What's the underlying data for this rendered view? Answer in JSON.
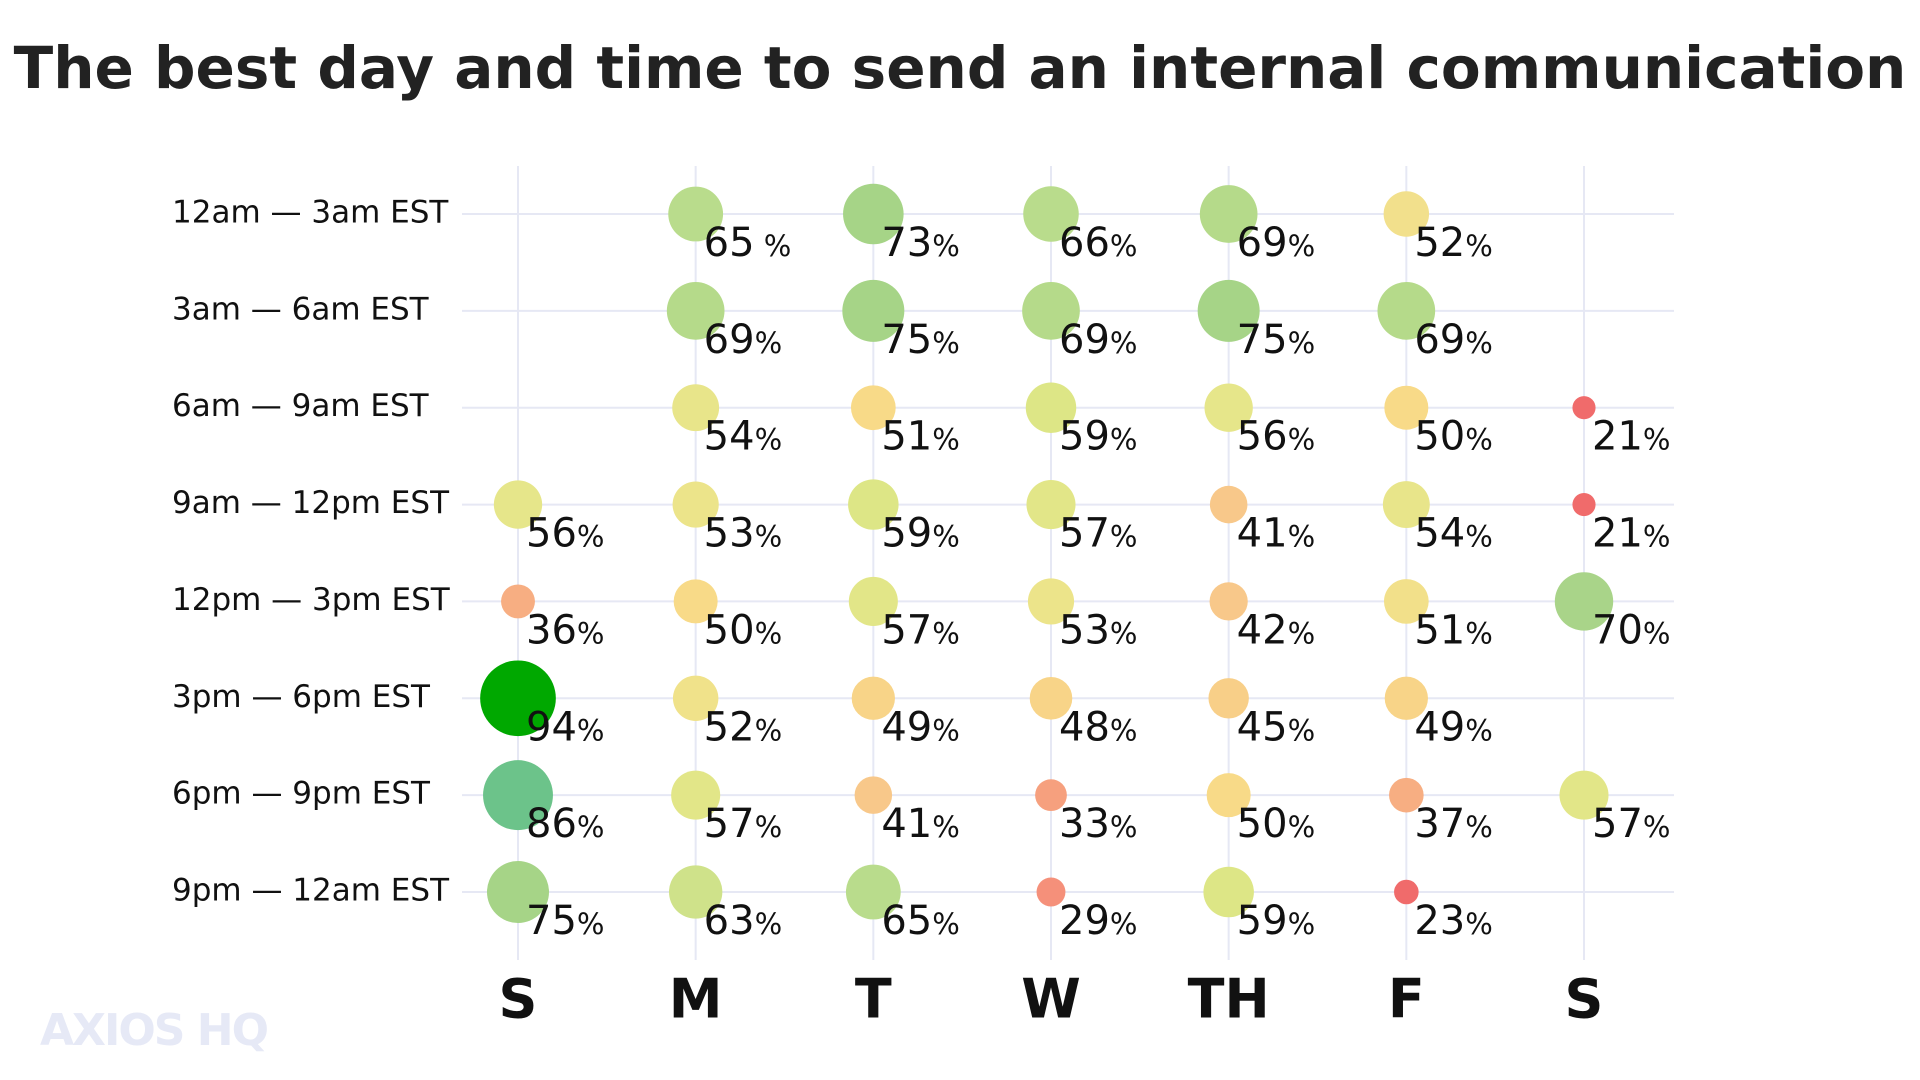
{
  "chart_data": {
    "type": "bubble",
    "title": "The best day and time to send an internal communication",
    "categories": [
      "S",
      "M",
      "T",
      "W",
      "TH",
      "F",
      "S"
    ],
    "grid": true,
    "logo": "AXIOS HQ",
    "series": [
      {
        "name": "12am — 3am EST",
        "values": [
          null,
          65,
          73,
          66,
          69,
          52,
          null
        ],
        "value_labels": [
          null,
          "65 %",
          "73%",
          "66%",
          "69%",
          "52%",
          null
        ],
        "colors": [
          null,
          "#b9dc8c",
          "#a6d487",
          "#b9dc8c",
          "#b5da8a",
          "#f2e08c",
          null
        ]
      },
      {
        "name": "3am — 6am EST",
        "values": [
          null,
          69,
          75,
          69,
          75,
          69,
          null
        ],
        "value_labels": [
          null,
          "69%",
          "75%",
          "69%",
          "75%",
          "69%",
          null
        ],
        "colors": [
          null,
          "#b5da8a",
          "#a6d487",
          "#b5da8a",
          "#a6d487",
          "#b5da8a",
          null
        ]
      },
      {
        "name": "6am — 9am EST",
        "values": [
          null,
          54,
          51,
          59,
          56,
          50,
          21
        ],
        "value_labels": [
          null,
          "54%",
          "51%",
          "59%",
          "56%",
          "50%",
          "21%"
        ],
        "colors": [
          null,
          "#e8e58a",
          "#f8da88",
          "#dde686",
          "#e6e68a",
          "#f8da88",
          "#f06b6b"
        ]
      },
      {
        "name": "9am — 12pm EST",
        "values": [
          56,
          53,
          59,
          57,
          41,
          54,
          21
        ],
        "value_labels": [
          "56%",
          "53%",
          "59%",
          "57%",
          "41%",
          "54%",
          "21%"
        ],
        "colors": [
          "#e6e68a",
          "#ece48a",
          "#dde686",
          "#e2e688",
          "#f8c88a",
          "#e8e58a",
          "#f06b6b"
        ]
      },
      {
        "name": "12pm — 3pm EST",
        "values": [
          36,
          50,
          57,
          53,
          42,
          51,
          70
        ],
        "value_labels": [
          "36%",
          "50%",
          "57%",
          "53%",
          "42%",
          "51%",
          "70%"
        ],
        "colors": [
          "#f7ae82",
          "#f8da88",
          "#e2e688",
          "#ece48a",
          "#f8c88a",
          "#f2e08a",
          "#a9d489"
        ]
      },
      {
        "name": "3pm — 6pm EST",
        "values": [
          94,
          52,
          49,
          48,
          45,
          49,
          null
        ],
        "value_labels": [
          "94%",
          "52%",
          "49%",
          "48%",
          "45%",
          "49%",
          null
        ],
        "colors": [
          "#00a800",
          "#f0e28a",
          "#f8d488",
          "#f8d488",
          "#f8cf88",
          "#f8d488",
          null
        ]
      },
      {
        "name": "6pm — 9pm EST",
        "values": [
          86,
          57,
          41,
          33,
          50,
          37,
          57
        ],
        "value_labels": [
          "86%",
          "57%",
          "41%",
          "33%",
          "50%",
          "37%",
          "57%"
        ],
        "colors": [
          "#6cc38a",
          "#e2e688",
          "#f8c88a",
          "#f6a07e",
          "#f8da88",
          "#f7ae82",
          "#e2e688"
        ]
      },
      {
        "name": "9pm — 12am EST",
        "values": [
          75,
          63,
          65,
          29,
          59,
          23,
          null
        ],
        "value_labels": [
          "75%",
          "63%",
          "65%",
          "29%",
          "59%",
          "23%",
          null
        ],
        "colors": [
          "#a6d487",
          "#cfe28a",
          "#b9dc8c",
          "#f5907a",
          "#dde686",
          "#f06b6b",
          null
        ]
      }
    ]
  }
}
